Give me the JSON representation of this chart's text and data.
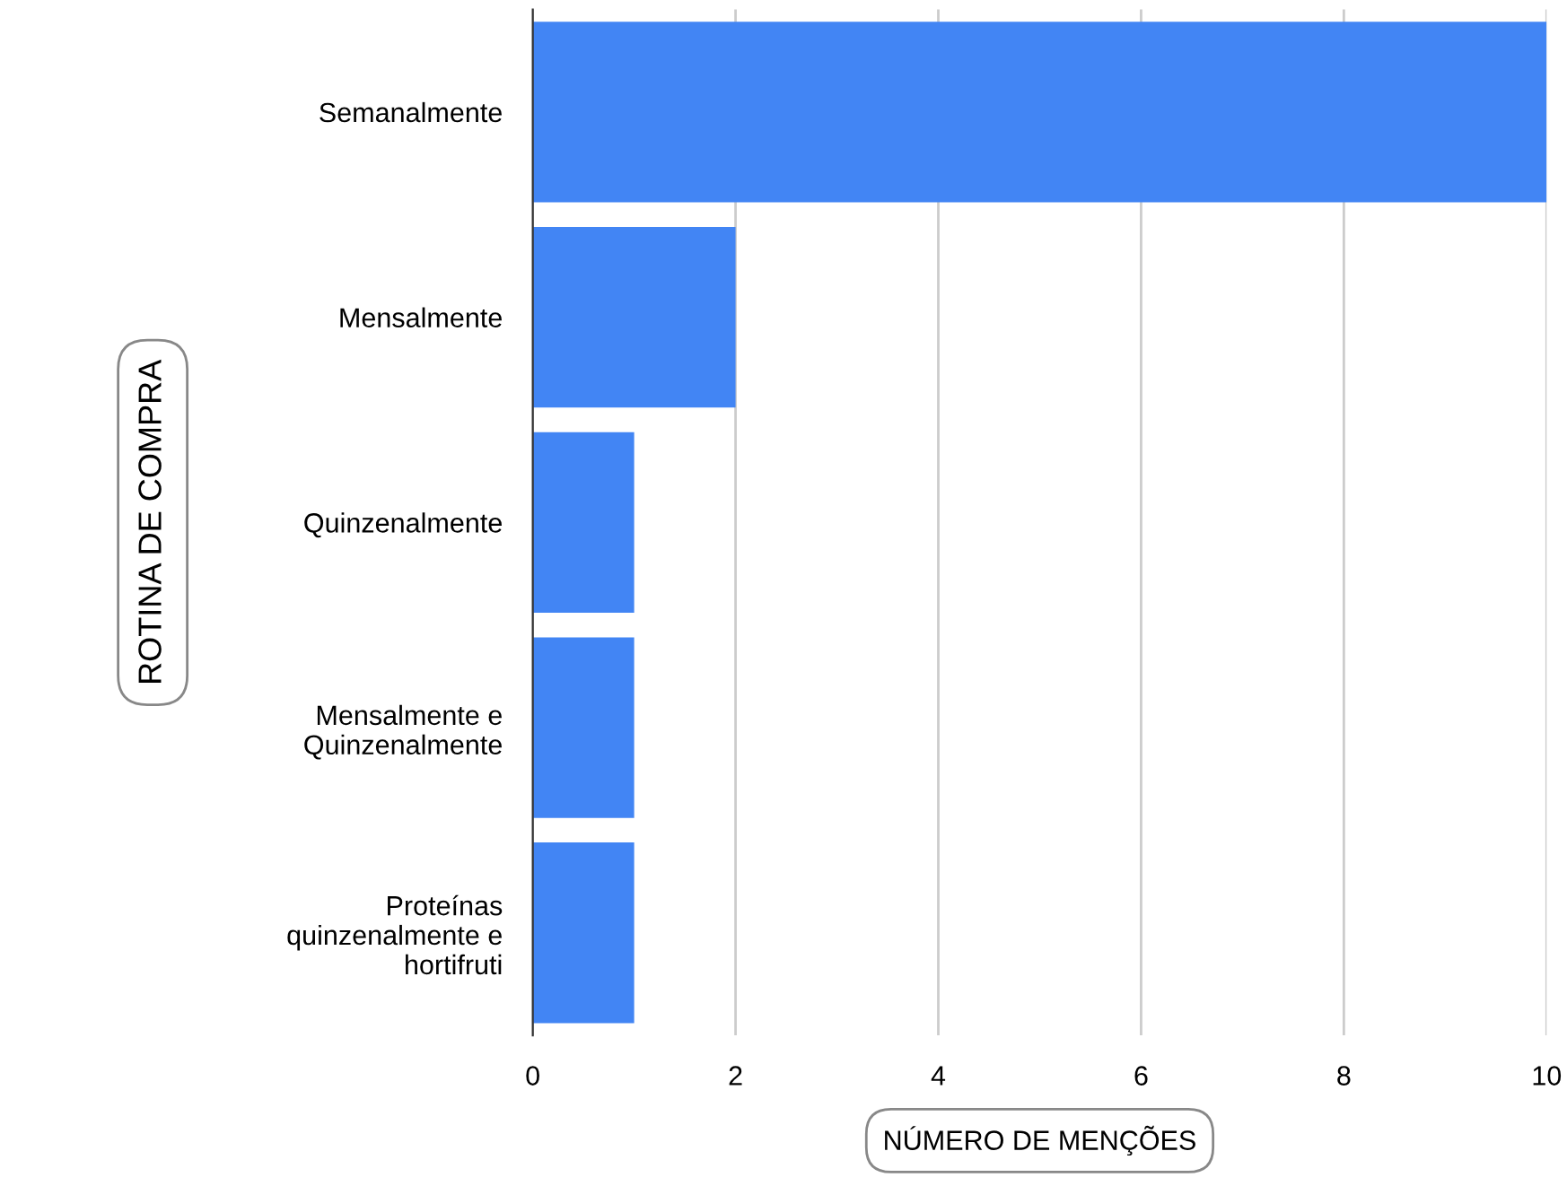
{
  "chart_data": {
    "type": "bar",
    "orientation": "horizontal",
    "categories": [
      "Semanalmente",
      "Mensalmente",
      "Quinzenalmente",
      "Mensalmente e\nQuinzenalmente",
      "Proteínas\nquinzenalmente e\nhortifruti"
    ],
    "values": [
      10,
      2,
      1,
      1,
      1
    ],
    "color": "#4285f4",
    "xlabel": "NÚMERO DE MENÇÕES",
    "ylabel": "ROTINA DE COMPRA",
    "xlim": [
      0,
      10
    ],
    "xticks": [
      0,
      2,
      4,
      6,
      8,
      10
    ],
    "grid": "x"
  }
}
